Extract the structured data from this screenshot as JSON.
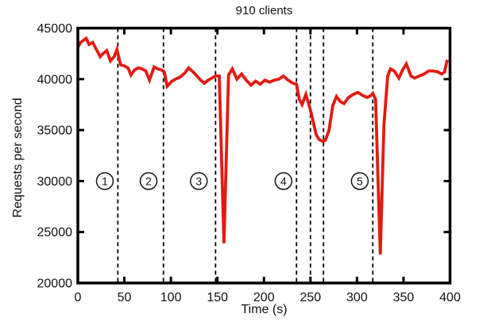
{
  "figure": {
    "title": "910 clients",
    "xlabel": "Time (s)",
    "ylabel": "Requests per second"
  },
  "chart_data": {
    "type": "line",
    "title": "910 clients",
    "xlabel": "Time (s)",
    "ylabel": "Requests per second",
    "xlim": [
      0,
      400
    ],
    "ylim": [
      20000,
      45000
    ],
    "xticks": [
      0,
      50,
      100,
      150,
      200,
      250,
      300,
      350,
      400
    ],
    "yticks": [
      20000,
      25000,
      30000,
      35000,
      40000,
      45000
    ],
    "grid": false,
    "legend": "none",
    "line_color": "#e41a12",
    "axis_color": "#000000",
    "event_line_style": "dashed",
    "event_lines": [
      43,
      92,
      148,
      235,
      250,
      264,
      317
    ],
    "annotations": [
      {
        "label": "1",
        "x": 29,
        "y": 30000
      },
      {
        "label": "2",
        "x": 76,
        "y": 30000
      },
      {
        "label": "3",
        "x": 130,
        "y": 30000
      },
      {
        "label": "4",
        "x": 221,
        "y": 30000
      },
      {
        "label": "5",
        "x": 303,
        "y": 30000
      }
    ],
    "series": [
      {
        "name": "910 clients",
        "points": [
          [
            0,
            43100
          ],
          [
            3,
            43600
          ],
          [
            6,
            43800
          ],
          [
            9,
            44000
          ],
          [
            12,
            43400
          ],
          [
            16,
            43600
          ],
          [
            20,
            42900
          ],
          [
            24,
            42200
          ],
          [
            27,
            42500
          ],
          [
            31,
            42800
          ],
          [
            35,
            41800
          ],
          [
            39,
            42200
          ],
          [
            42,
            42900
          ],
          [
            46,
            41400
          ],
          [
            50,
            41300
          ],
          [
            54,
            41100
          ],
          [
            57,
            40400
          ],
          [
            61,
            40900
          ],
          [
            65,
            41100
          ],
          [
            69,
            41000
          ],
          [
            73,
            40800
          ],
          [
            77,
            39900
          ],
          [
            82,
            41200
          ],
          [
            86,
            41000
          ],
          [
            90,
            40900
          ],
          [
            93,
            40700
          ],
          [
            96,
            39300
          ],
          [
            101,
            39800
          ],
          [
            105,
            40000
          ],
          [
            110,
            40200
          ],
          [
            115,
            40600
          ],
          [
            119,
            41100
          ],
          [
            124,
            40700
          ],
          [
            128,
            40300
          ],
          [
            132,
            39900
          ],
          [
            136,
            39600
          ],
          [
            140,
            39900
          ],
          [
            144,
            40100
          ],
          [
            148,
            40300
          ],
          [
            152,
            40300
          ],
          [
            157,
            23900
          ],
          [
            162,
            40400
          ],
          [
            166,
            41000
          ],
          [
            171,
            40000
          ],
          [
            176,
            40500
          ],
          [
            181,
            39900
          ],
          [
            186,
            39400
          ],
          [
            191,
            39800
          ],
          [
            196,
            39500
          ],
          [
            201,
            39900
          ],
          [
            206,
            39700
          ],
          [
            211,
            39900
          ],
          [
            216,
            40000
          ],
          [
            221,
            40300
          ],
          [
            226,
            39900
          ],
          [
            231,
            39600
          ],
          [
            235,
            39500
          ],
          [
            238,
            38000
          ],
          [
            241,
            37500
          ],
          [
            245,
            38500
          ],
          [
            249,
            37300
          ],
          [
            252,
            36200
          ],
          [
            256,
            34600
          ],
          [
            259,
            34100
          ],
          [
            263,
            33900
          ],
          [
            266,
            34000
          ],
          [
            270,
            35000
          ],
          [
            274,
            37400
          ],
          [
            278,
            38300
          ],
          [
            282,
            37800
          ],
          [
            286,
            37600
          ],
          [
            291,
            38200
          ],
          [
            296,
            38500
          ],
          [
            301,
            38700
          ],
          [
            306,
            38400
          ],
          [
            311,
            38200
          ],
          [
            315,
            38400
          ],
          [
            317,
            38600
          ],
          [
            320,
            38000
          ],
          [
            325,
            22800
          ],
          [
            329,
            35500
          ],
          [
            333,
            40300
          ],
          [
            336,
            41000
          ],
          [
            340,
            40800
          ],
          [
            345,
            40100
          ],
          [
            349,
            40900
          ],
          [
            353,
            41500
          ],
          [
            358,
            40300
          ],
          [
            362,
            40100
          ],
          [
            367,
            40300
          ],
          [
            372,
            40500
          ],
          [
            377,
            40800
          ],
          [
            382,
            40800
          ],
          [
            387,
            40700
          ],
          [
            391,
            40500
          ],
          [
            394,
            40700
          ],
          [
            397,
            41900
          ]
        ]
      }
    ]
  }
}
